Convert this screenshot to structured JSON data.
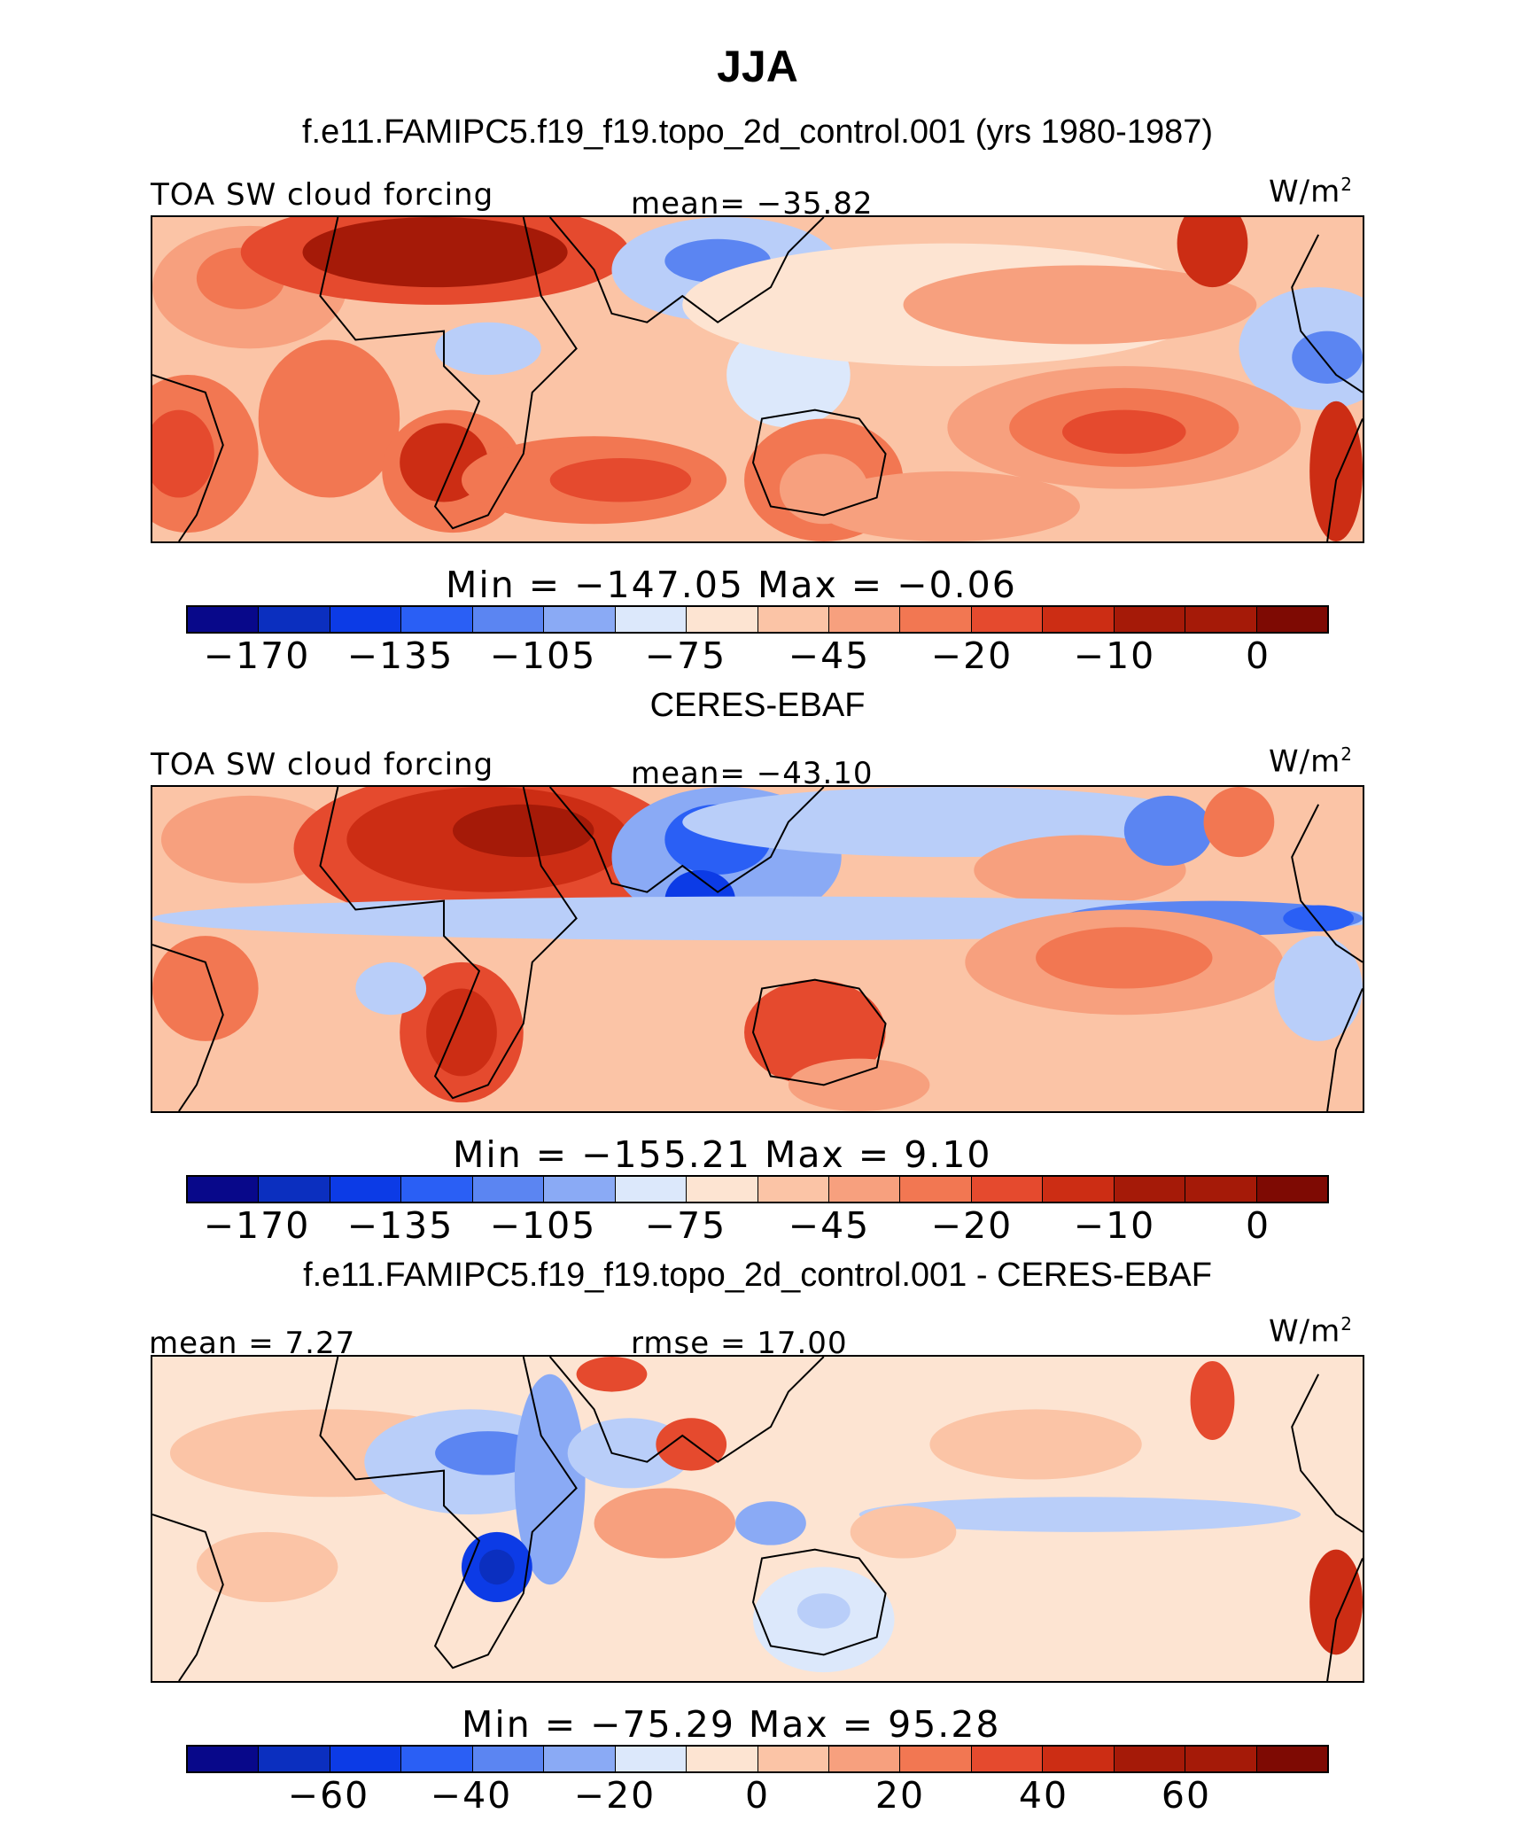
{
  "figure_title": "JJA",
  "palette": [
    "#08088a",
    "#0b2fbf",
    "#0c3be6",
    "#2a5ff5",
    "#5b85f2",
    "#8aaaf5",
    "#b9cef9",
    "#dce8fb",
    "#fde4d2",
    "#fbc4a6",
    "#f7a07e",
    "#f27752",
    "#e54a2e",
    "#cc2d14",
    "#a51a08",
    "#7e0a03"
  ],
  "panels": [
    {
      "caption": "f.e11.FAMIPC5.f19_f19.topo_2d_control.001 (yrs 1980-1987)",
      "left_label": "TOA SW cloud forcing",
      "center_label": "mean= −35.82",
      "unit_label": "W/m",
      "unit_sup": "2",
      "minmax": "Min  =  −147.05  Max  =    −0.06",
      "ticks": [
        "−170",
        "−135",
        "−105",
        "−75",
        "−45",
        "−20",
        "−10",
        "0"
      ]
    },
    {
      "caption": "CERES-EBAF",
      "left_label": "TOA SW cloud forcing",
      "center_label": "mean= −43.10",
      "unit_label": "W/m",
      "unit_sup": "2",
      "minmax": "Min  =  −155.21  Max  =     9.10",
      "ticks": [
        "−170",
        "−135",
        "−105",
        "−75",
        "−45",
        "−20",
        "−10",
        "0"
      ]
    },
    {
      "caption": "f.e11.FAMIPC5.f19_f19.topo_2d_control.001 - CERES-EBAF",
      "left_label": "mean =   7.27",
      "center_label": "rmse =  17.00",
      "unit_label": "W/m",
      "unit_sup": "2",
      "minmax": "Min  =  −75.29  Max  =   95.28",
      "ticks": [
        "−60",
        "−40",
        "−20",
        "0",
        "20",
        "40",
        "60"
      ]
    }
  ]
}
